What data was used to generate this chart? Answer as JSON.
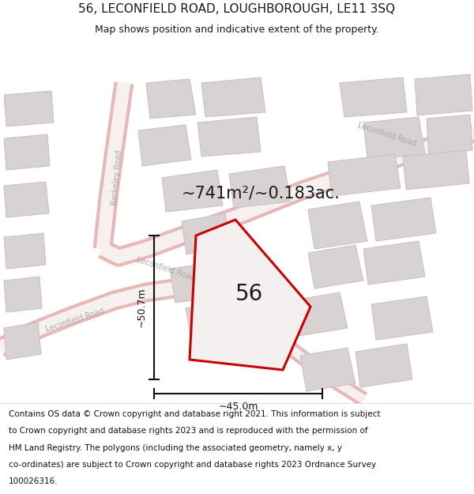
{
  "title_line1": "56, LECONFIELD ROAD, LOUGHBOROUGH, LE11 3SQ",
  "title_line2": "Map shows position and indicative extent of the property.",
  "area_text": "~741m²/~0.183ac.",
  "number_label": "56",
  "dim_height": "~50.7m",
  "dim_width": "~45.0m",
  "footer_lines": [
    "Contains OS data © Crown copyright and database right 2021. This information is subject",
    "to Crown copyright and database rights 2023 and is reproduced with the permission of",
    "HM Land Registry. The polygons (including the associated geometry, namely x, y",
    "co-ordinates) are subject to Crown copyright and database rights 2023 Ordnance Survey",
    "100026316."
  ],
  "map_bg": "#f5f0f0",
  "road_outline_color": "#e8b8b8",
  "road_fill_color": "#f7f0f0",
  "building_fill": "#d8d2d2",
  "building_edge": "#c8c0c0",
  "property_edge": "#cc0000",
  "property_fill": "#f5f0f0",
  "dim_color": "#111111",
  "text_color": "#1a1a1a",
  "road_label_color": "#aaaaaa",
  "title_fontsize": 11,
  "subtitle_fontsize": 9,
  "area_fontsize": 15,
  "num_fontsize": 20,
  "dim_fontsize": 9,
  "footer_fontsize": 7.5,
  "road_label_fontsize": 7
}
